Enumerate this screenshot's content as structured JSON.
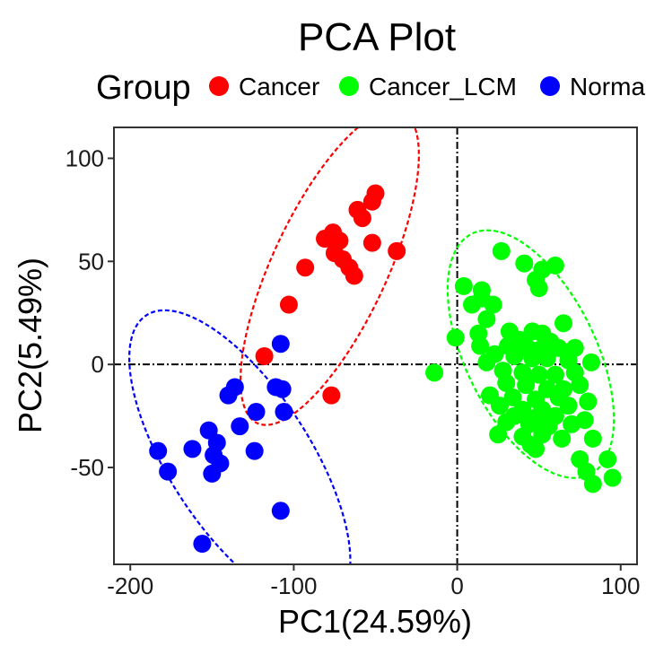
{
  "chart_data": {
    "type": "scatter",
    "title": "PCA Plot",
    "xlabel": "PC1(24.59%)",
    "ylabel": "PC2(5.49%)",
    "xlim": [
      -210,
      110
    ],
    "ylim": [
      -97,
      115
    ],
    "xticks": [
      -200,
      -100,
      0,
      100
    ],
    "yticks": [
      -50,
      0,
      50,
      100
    ],
    "xtick_labels": [
      "-200",
      "-100",
      "0",
      "100"
    ],
    "ytick_labels": [
      "-50",
      "0",
      "50",
      "100"
    ],
    "reference_lines": {
      "x": 0,
      "y": 0
    },
    "legend": {
      "title": "Group",
      "position": "top"
    },
    "series": [
      {
        "name": "Cancer",
        "color": "#ff0000",
        "ellipse": {
          "cx": -78,
          "cy": 47,
          "rx": 105,
          "ry": 35,
          "angle_deg": 65
        },
        "points": [
          [
            -50,
            83
          ],
          [
            -52,
            79
          ],
          [
            -61,
            75
          ],
          [
            -58,
            71
          ],
          [
            -76,
            64
          ],
          [
            -81,
            61
          ],
          [
            -72,
            60
          ],
          [
            -52,
            59
          ],
          [
            -75,
            54
          ],
          [
            -70,
            51
          ],
          [
            -37,
            55
          ],
          [
            -66,
            47
          ],
          [
            -63,
            43
          ],
          [
            -93,
            47
          ],
          [
            -103,
            29
          ],
          [
            -118,
            4
          ],
          [
            -77,
            -15
          ]
        ]
      },
      {
        "name": "Cancer_LCM",
        "color": "#00ff00",
        "ellipse": {
          "cx": 45,
          "cy": 5,
          "rx": 82,
          "ry": 40,
          "angle_deg": -64
        },
        "points": [
          [
            27,
            55
          ],
          [
            41,
            49
          ],
          [
            52,
            46
          ],
          [
            60,
            48
          ],
          [
            4,
            38
          ],
          [
            15,
            36
          ],
          [
            48,
            41
          ],
          [
            50,
            37
          ],
          [
            15,
            32
          ],
          [
            9,
            29
          ],
          [
            22,
            29
          ],
          [
            18,
            22
          ],
          [
            65,
            20
          ],
          [
            -1,
            13
          ],
          [
            13,
            15
          ],
          [
            32,
            16
          ],
          [
            46,
            16
          ],
          [
            52,
            15
          ],
          [
            38,
            12
          ],
          [
            57,
            11
          ],
          [
            14,
            9
          ],
          [
            31,
            9
          ],
          [
            43,
            8
          ],
          [
            50,
            7
          ],
          [
            62,
            8
          ],
          [
            72,
            8
          ],
          [
            23,
            5
          ],
          [
            35,
            4
          ],
          [
            46,
            3
          ],
          [
            55,
            3
          ],
          [
            68,
            2
          ],
          [
            18,
            1
          ],
          [
            82,
            1
          ],
          [
            -14,
            -4
          ],
          [
            28,
            -3
          ],
          [
            40,
            -4
          ],
          [
            50,
            -5
          ],
          [
            60,
            -5
          ],
          [
            72,
            -4
          ],
          [
            30,
            -9
          ],
          [
            42,
            -10
          ],
          [
            55,
            -12
          ],
          [
            65,
            -12
          ],
          [
            75,
            -10
          ],
          [
            20,
            -15
          ],
          [
            34,
            -16
          ],
          [
            48,
            -17
          ],
          [
            62,
            -16
          ],
          [
            26,
            -20
          ],
          [
            40,
            -22
          ],
          [
            52,
            -22
          ],
          [
            68,
            -20
          ],
          [
            80,
            -18
          ],
          [
            35,
            -25
          ],
          [
            48,
            -26
          ],
          [
            60,
            -25
          ],
          [
            30,
            -28
          ],
          [
            44,
            -29
          ],
          [
            56,
            -30
          ],
          [
            70,
            -29
          ],
          [
            78,
            -27
          ],
          [
            25,
            -34
          ],
          [
            40,
            -35
          ],
          [
            52,
            -34
          ],
          [
            64,
            -36
          ],
          [
            83,
            -36
          ],
          [
            45,
            -39
          ],
          [
            48,
            -41
          ],
          [
            75,
            -46
          ],
          [
            92,
            -46
          ],
          [
            79,
            -52
          ],
          [
            95,
            -55
          ],
          [
            83,
            -58
          ]
        ]
      },
      {
        "name": "Normal",
        "color": "#0000ff",
        "ellipse": {
          "cx": -133,
          "cy": -46,
          "rx": 105,
          "ry": 43,
          "angle_deg": -57
        },
        "points": [
          [
            -108,
            10
          ],
          [
            -136,
            -11
          ],
          [
            -140,
            -15
          ],
          [
            -111,
            -11
          ],
          [
            -107,
            -12
          ],
          [
            -123,
            -23
          ],
          [
            -106,
            -23
          ],
          [
            -133,
            -30
          ],
          [
            -152,
            -32
          ],
          [
            -147,
            -38
          ],
          [
            -162,
            -41
          ],
          [
            -183,
            -42
          ],
          [
            -124,
            -42
          ],
          [
            -149,
            -44
          ],
          [
            -145,
            -48
          ],
          [
            -177,
            -52
          ],
          [
            -150,
            -53
          ],
          [
            -108,
            -71
          ],
          [
            -156,
            -87
          ]
        ]
      }
    ]
  }
}
